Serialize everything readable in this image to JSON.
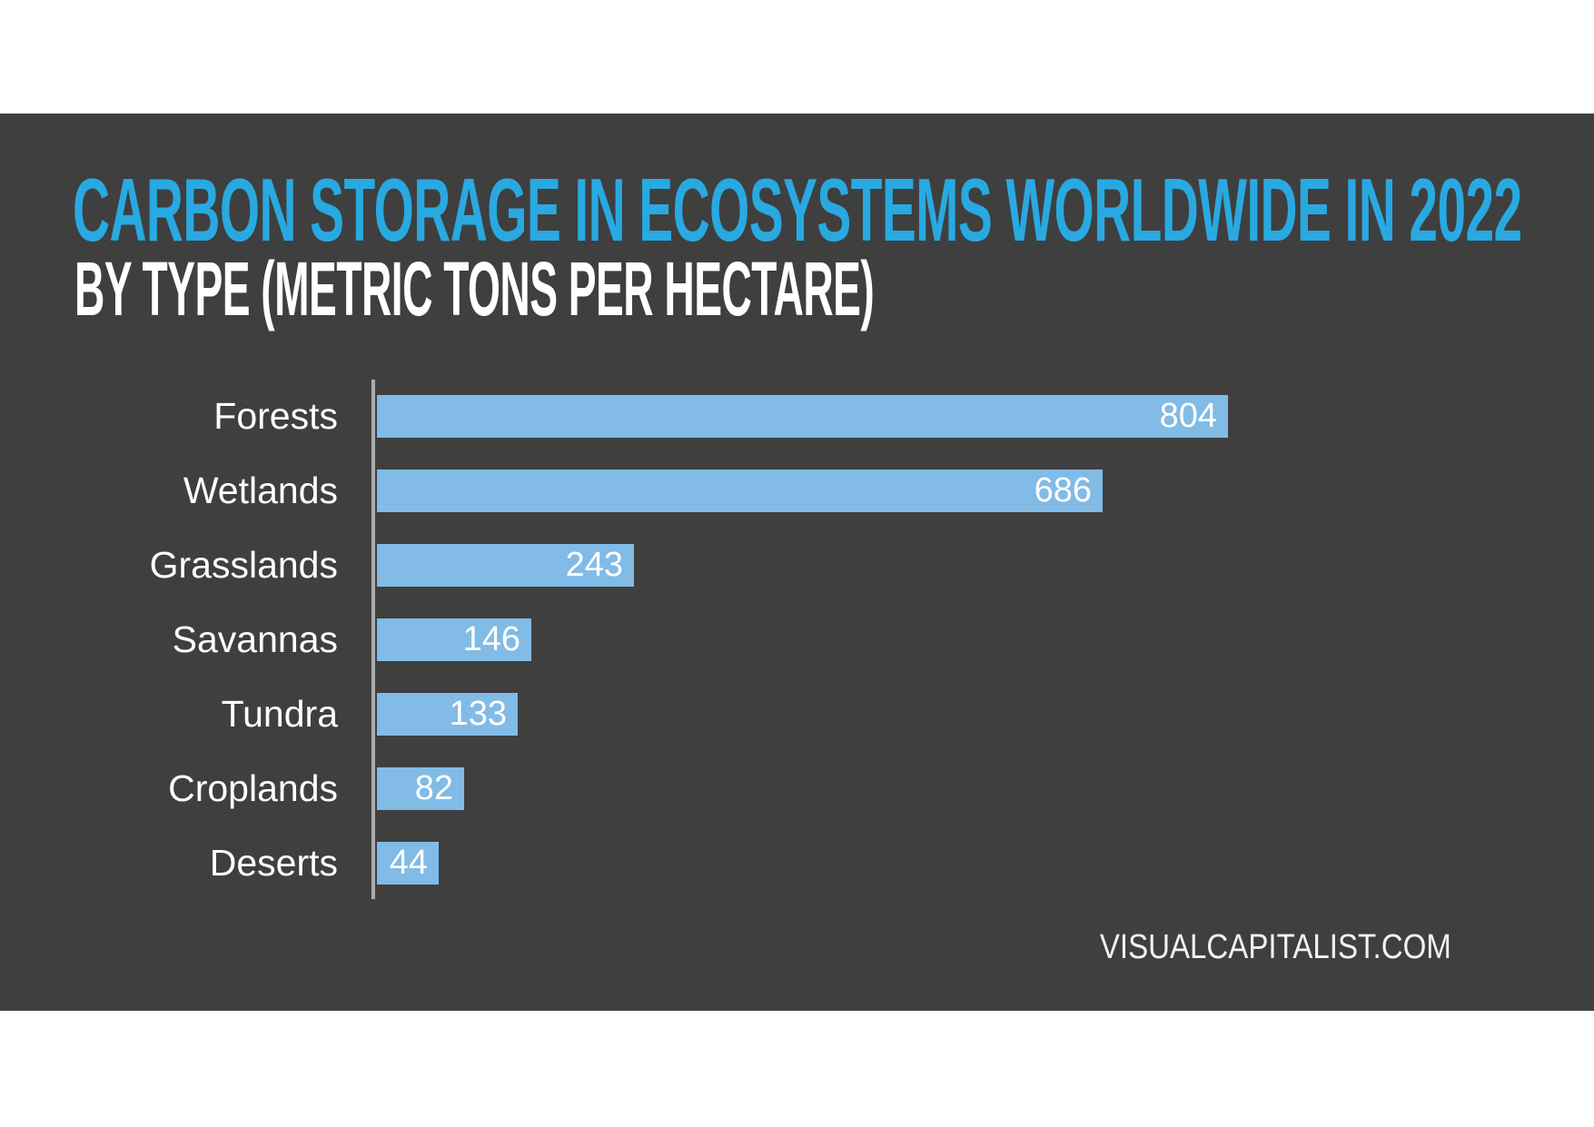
{
  "page": {
    "background": "#FFFFFF",
    "panel_background": "#3F3F3F"
  },
  "chart_data": {
    "type": "bar",
    "orientation": "horizontal",
    "title": "CARBON STORAGE IN ECOSYSTEMS WORLDWIDE IN 2022",
    "subtitle": "BY TYPE (METRIC TONS PER HECTARE)",
    "categories": [
      "Forests",
      "Wetlands",
      "Grasslands",
      "Savannas",
      "Tundra",
      "Croplands",
      "Deserts"
    ],
    "values": [
      804,
      686,
      243,
      146,
      133,
      82,
      44
    ],
    "value_labels": [
      "804",
      "686",
      "243",
      "146",
      "133",
      "82",
      "44"
    ],
    "xlim": [
      0,
      850
    ],
    "grid": false,
    "legend": "none",
    "value_label_position": "inside-end",
    "axis": {
      "ticks_visible": false,
      "category_axis_line_visible": true
    },
    "colors": {
      "bar": "#81BBE6",
      "title": "#29A9E1",
      "subtitle": "#FFFFFF",
      "category_label": "#FFFFFF",
      "value_label": "#FFFFFF",
      "axis_line": "#ABABAB",
      "panel_background": "#3F3F3F"
    },
    "source": "VISUALCAPITALIST.COM"
  }
}
